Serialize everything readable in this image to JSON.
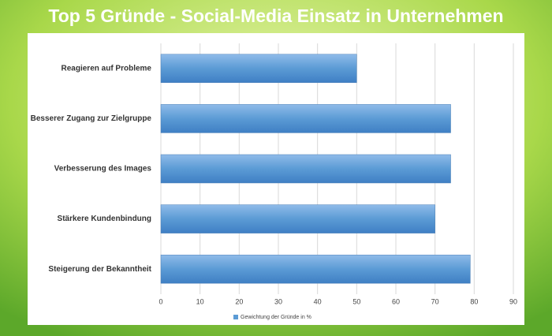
{
  "chart_data": {
    "type": "bar",
    "orientation": "horizontal",
    "title": "Top 5 Gründe - Social-Media Einsatz in Unternehmen",
    "categories": [
      "Reagieren auf Probleme",
      "Besserer Zugang zur Zielgruppe",
      "Verbesserung des Images",
      "Stärkere Kundenbindung",
      "Steigerung der Bekanntheit"
    ],
    "series": [
      {
        "name": "Gewichtung der Gründe in %",
        "color": "#5b9bd5",
        "values": [
          50,
          74,
          74,
          70,
          79
        ]
      }
    ],
    "xlim": [
      0,
      90
    ],
    "xticks": [
      0,
      10,
      20,
      30,
      40,
      50,
      60,
      70,
      80,
      90
    ],
    "grid": true,
    "legend": "bottom"
  }
}
